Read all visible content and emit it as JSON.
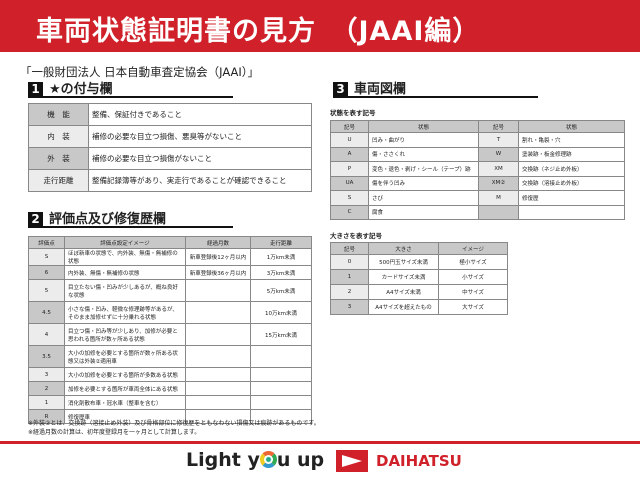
{
  "title": "車両状態証明書の見方　（JAAI編）",
  "subtitle": "「一般財団法人 日本自動車査定協会（JAAI）」",
  "section1": {
    "num": "1",
    "label": "★の付与欄",
    "rows": [
      [
        "機　能",
        "整備、保証付きであること"
      ],
      [
        "内　装",
        "補修の必要な目立つ損傷、悪臭等がないこと"
      ],
      [
        "外　装",
        "補修の必要な目立つ損傷がないこと"
      ],
      [
        "走行距離",
        "整備記録簿等があり、実走行であることが確認できること"
      ]
    ]
  },
  "section2": {
    "num": "2",
    "label": "評価点及び修復歴欄",
    "headers": [
      "評価点",
      "評価点設定イメージ",
      "経過月数",
      "走行距離"
    ],
    "rows": [
      [
        "S",
        "ほぼ新車の状態で、内外装、無傷・無補修の状態",
        "新車登録後12ヶ月以内",
        "1万km未満"
      ],
      [
        "6",
        "内外装、無傷・無補修の状態",
        "新車登録後36ヶ月以内",
        "3万km未満"
      ],
      [
        "5",
        "目立たない傷・凹みが少しあるが、概ね良好な状態",
        "",
        "5万km未満"
      ],
      [
        "4.5",
        "小さな傷・凹み、軽微な修理跡等があるが、そのまま加修せずに十分乗れる状態",
        "",
        "10万km未満"
      ],
      [
        "4",
        "目立つ傷・凹み等が少しあり、加修が必要と思われる箇所が数ヶ所ある状態",
        "",
        "15万km未満"
      ],
      [
        "3.5",
        "大小の加修を必要とする箇所が数ヶ所ある状態又は外装②適用車",
        "",
        ""
      ],
      [
        "3",
        "大小の加修を必要とする箇所が多数ある状態",
        "",
        ""
      ],
      [
        "2",
        "加修を必要とする箇所が車両全体にある状態",
        "",
        ""
      ],
      [
        "1",
        "消化剤散布車・冠水車（整車を含む）",
        "",
        ""
      ],
      [
        "R",
        "修復歴車",
        "",
        ""
      ]
    ]
  },
  "notes": [
    "※外装②とは、交換跡（溶接止め外装）及び骨格部位に修復歴をともなわない損傷又は痕跡があるものです。",
    "※経過月数の計算は、初年度登録月を一ヶ月として計算します。"
  ],
  "section3": {
    "num": "3",
    "label": "車両図欄",
    "caption1": "状態を表す記号",
    "headers1": [
      "記号",
      "状態",
      "記号",
      "状態"
    ],
    "rows1": [
      [
        "U",
        "凹み・曲がり",
        "T",
        "割れ・亀裂・穴"
      ],
      [
        "A",
        "傷・ささくれ",
        "W",
        "塗装跡・板金修理跡"
      ],
      [
        "P",
        "変色・退色・剥げ・シール（テープ）跡",
        "XM",
        "交換跡（ネジ止め外板）"
      ],
      [
        "UA",
        "傷を伴う凹み",
        "XM②",
        "交換跡（溶接止め外板）"
      ],
      [
        "S",
        "さび",
        "M",
        "修復歴"
      ],
      [
        "C",
        "腐食",
        "",
        ""
      ]
    ],
    "caption2": "大きさを表す記号",
    "headers2": [
      "記号",
      "大きさ",
      "イメージ"
    ],
    "rows2": [
      [
        "0",
        "500円玉サイズ未満",
        "極小サイズ"
      ],
      [
        "1",
        "カードサイズ未満",
        "小サイズ"
      ],
      [
        "2",
        "A4サイズ未満",
        "中サイズ"
      ],
      [
        "3",
        "A4サイズを超えたもの",
        "大サイズ"
      ]
    ]
  },
  "footer": {
    "slogan_pre": "Light y",
    "slogan_post": "u up",
    "brand": "DAIHATSU",
    "accent": "#d0202a"
  }
}
